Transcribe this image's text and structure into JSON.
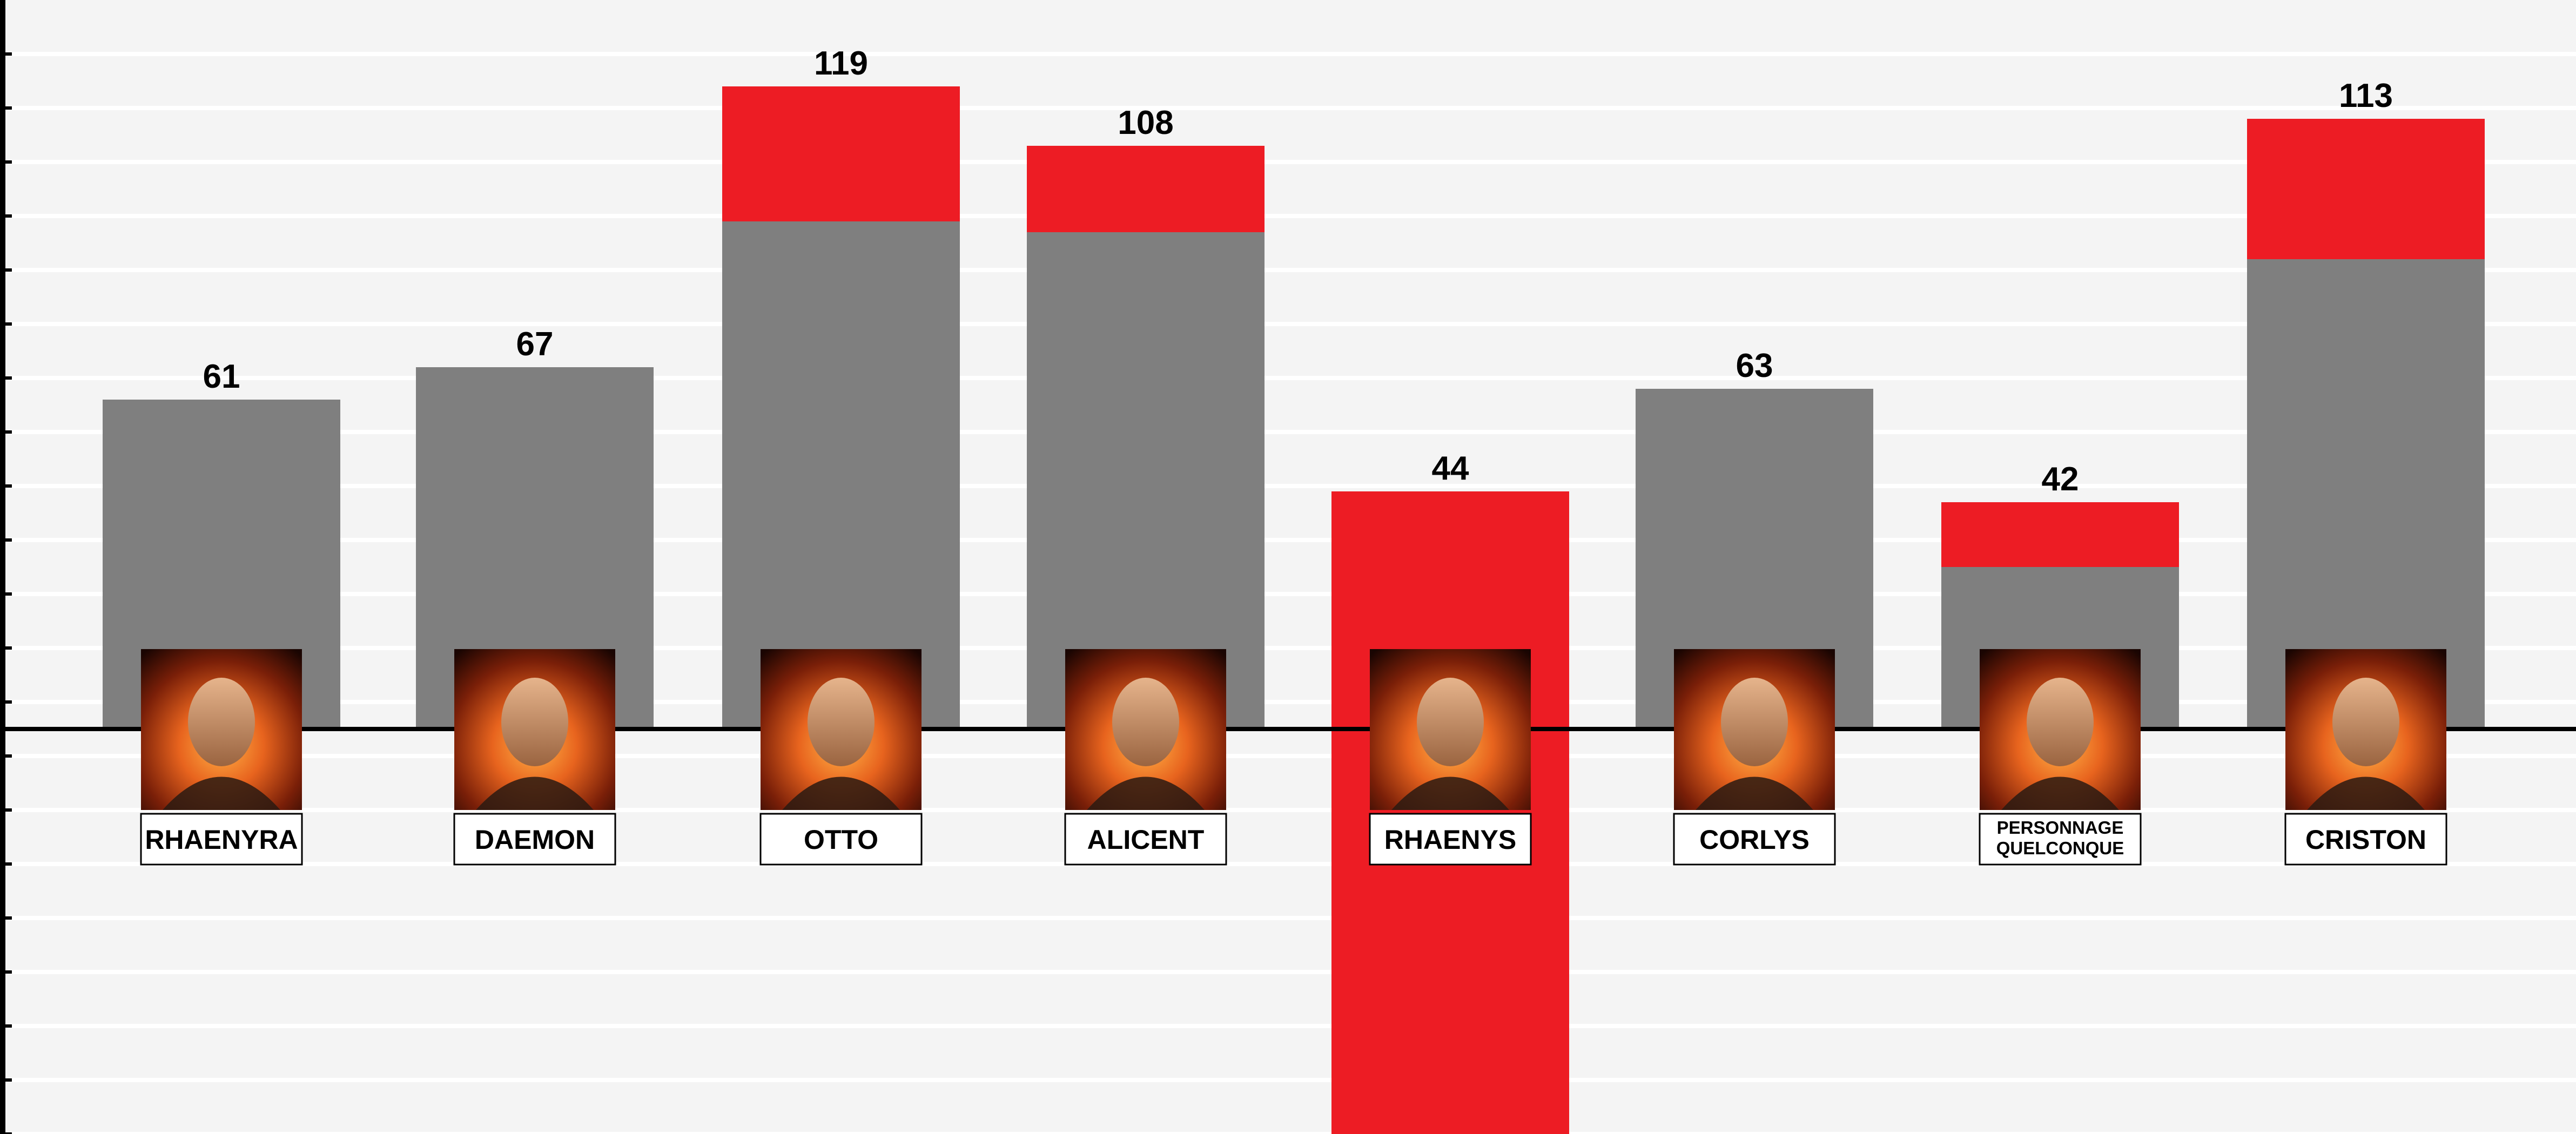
{
  "chart_data": {
    "type": "bar",
    "title": "",
    "xlabel": "",
    "ylabel": "",
    "categories": [
      "RHAENYRA",
      "DAEMON",
      "OTTO",
      "ALICENT",
      "RHAENYS",
      "CORLYS",
      "PERSONNAGE QUELCONQUE",
      "CRISTON"
    ],
    "category_lines": [
      [
        "RHAENYRA"
      ],
      [
        "DAEMON"
      ],
      [
        "OTTO"
      ],
      [
        "ALICENT"
      ],
      [
        "RHAENYS"
      ],
      [
        "CORLYS"
      ],
      [
        "PERSONNAGE",
        "QUELCONQUE"
      ],
      [
        "CRISTON"
      ]
    ],
    "totals": [
      61,
      67,
      119,
      108,
      44,
      63,
      42,
      113
    ],
    "total_labels": [
      "61",
      "67",
      "119",
      "108",
      "44",
      "63",
      "42",
      "113"
    ],
    "series": [
      {
        "values": [
          61,
          67,
          94,
          92,
          null,
          63,
          30,
          87
        ]
      },
      {
        "values": [
          0,
          0,
          25,
          16,
          null,
          0,
          12,
          26
        ]
      }
    ],
    "negative_extent": {
      "RHAENYS": -75
    },
    "ylim": [
      -75,
      130
    ],
    "grid": true,
    "legend": "none",
    "portraits": [
      "character-portrait",
      "character-portrait",
      "character-portrait",
      "character-portrait",
      "character-portrait",
      "character-portrait",
      "character-portrait",
      "character-portrait"
    ]
  },
  "colors": {
    "background": "#f4f4f4",
    "gridline": "#ffffff",
    "bar_grey": "#7f7f7f",
    "bar_red": "#ed1c24",
    "axis": "#000000",
    "label_box_border": "#000000",
    "label_box_fill": "#ffffff"
  }
}
